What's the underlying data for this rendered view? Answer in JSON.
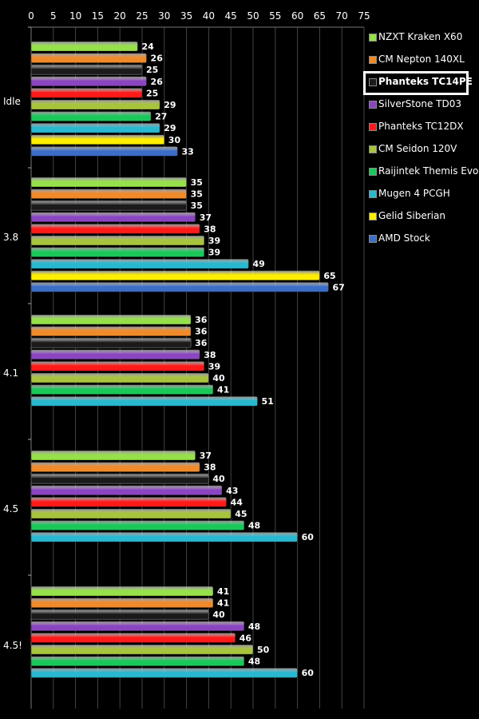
{
  "chart_data": {
    "type": "bar",
    "orientation": "horizontal",
    "title": "",
    "xlabel": "",
    "ylabel": "",
    "xlim": [
      0,
      75
    ],
    "x_ticks": [
      "0",
      "5",
      "10",
      "15",
      "20",
      "25",
      "30",
      "35",
      "40",
      "45",
      "50",
      "55",
      "60",
      "65",
      "70",
      "75"
    ],
    "grid": true,
    "legend_position": "right",
    "highlighted_series": "Phanteks TC14PE",
    "categories": [
      "Idle",
      "3.8",
      "4.1",
      "4.5",
      "4.5!"
    ],
    "series": [
      {
        "name": "NZXT Kraken X60",
        "color": "#96e04a",
        "values": [
          24,
          35,
          36,
          37,
          41
        ]
      },
      {
        "name": "CM Nepton 140XL",
        "color": "#f08a2a",
        "values": [
          26,
          35,
          36,
          38,
          41
        ]
      },
      {
        "name": "Phanteks TC14PE",
        "color": "#1a1a1a",
        "values": [
          25,
          35,
          36,
          40,
          40
        ]
      },
      {
        "name": "SilverStone TD03",
        "color": "#8a45c0",
        "values": [
          26,
          37,
          38,
          43,
          48
        ]
      },
      {
        "name": "Phanteks TC12DX",
        "color": "#ff1a1a",
        "values": [
          25,
          38,
          39,
          44,
          46
        ]
      },
      {
        "name": "CM Seidon 120V",
        "color": "#a8c43c",
        "values": [
          29,
          39,
          40,
          45,
          50
        ]
      },
      {
        "name": "Raijintek Themis Evo",
        "color": "#1ac85a",
        "values": [
          27,
          39,
          41,
          48,
          48
        ]
      },
      {
        "name": "Mugen 4 PCGH",
        "color": "#28b8d0",
        "values": [
          29,
          49,
          51,
          60,
          60
        ]
      },
      {
        "name": "Gelid Siberian",
        "color": "#ffee00",
        "values": [
          30,
          65,
          null,
          null,
          null
        ]
      },
      {
        "name": "AMD Stock",
        "color": "#3c6ec8",
        "values": [
          33,
          67,
          null,
          null,
          null
        ]
      }
    ]
  }
}
